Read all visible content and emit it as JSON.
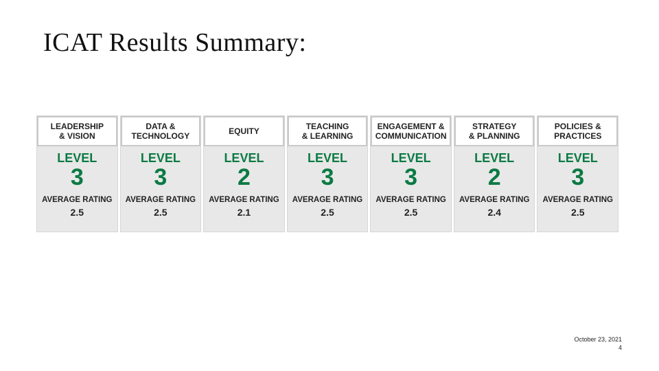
{
  "slide": {
    "title": "ICAT Results Summary:",
    "date": "October 23, 2021",
    "page_number": "4"
  },
  "cards": [
    {
      "heading": "LEADERSHIP\n& VISION",
      "level_word": "LEVEL",
      "level": "3",
      "avg_label": "AVERAGE RATING",
      "avg_value": "2.5"
    },
    {
      "heading": "DATA &\nTECHNOLOGY",
      "level_word": "LEVEL",
      "level": "3",
      "avg_label": "AVERAGE RATING",
      "avg_value": "2.5"
    },
    {
      "heading": "EQUITY",
      "level_word": "LEVEL",
      "level": "2",
      "avg_label": "AVERAGE RATING",
      "avg_value": "2.1"
    },
    {
      "heading": "TEACHING\n& LEARNING",
      "level_word": "LEVEL",
      "level": "3",
      "avg_label": "AVERAGE RATING",
      "avg_value": "2.5"
    },
    {
      "heading": "ENGAGEMENT &\nCOMMUNICATION",
      "level_word": "LEVEL",
      "level": "3",
      "avg_label": "AVERAGE RATING",
      "avg_value": "2.5"
    },
    {
      "heading": "STRATEGY\n& PLANNING",
      "level_word": "LEVEL",
      "level": "2",
      "avg_label": "AVERAGE RATING",
      "avg_value": "2.4"
    },
    {
      "heading": "POLICIES &\nPRACTICES",
      "level_word": "LEVEL",
      "level": "3",
      "avg_label": "AVERAGE RATING",
      "avg_value": "2.5"
    }
  ],
  "colors": {
    "level_green": "#0b7a43",
    "card_background": "#e8e8e8",
    "header_background": "#ffffff"
  }
}
